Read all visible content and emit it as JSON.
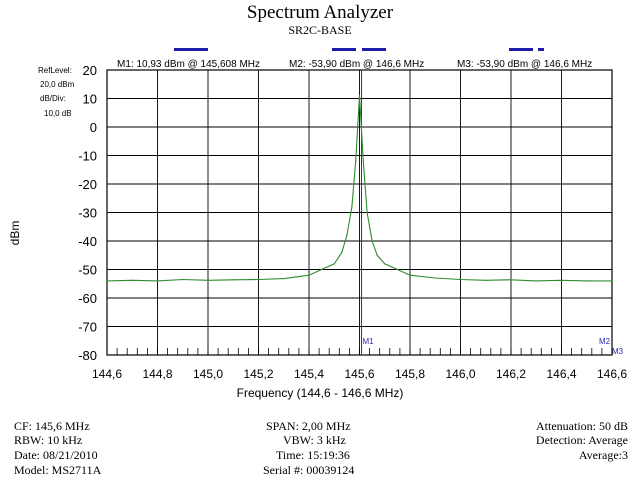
{
  "header": {
    "title": "Spectrum Analyzer",
    "subtitle": "SR2C-BASE"
  },
  "markers": {
    "m1": "M1: 10,93 dBm @ 145,608 MHz",
    "m2": "M2: -53,90 dBm @ 146,6 MHz",
    "m3": "M3: -53,90 dBm @ 146,6 MHz",
    "m1_tag": "M1",
    "m2_tag": "M2",
    "m3_tag": "M3"
  },
  "settings": {
    "ref_level_label": "RefLevel:",
    "ref_level_value": "20,0 dBm",
    "db_div_label": "dB/Div:",
    "db_div_value": "10,0 dB"
  },
  "footer": {
    "cf": "CF: 145,6 MHz",
    "rbw": "RBW: 10 kHz",
    "date": "Date: 08/21/2010",
    "model": "Model: MS2711A",
    "span": "SPAN: 2,00 MHz",
    "vbw": "VBW: 3 kHz",
    "time": "Time: 15:19:36",
    "serial": "Serial #: 00039124",
    "attenuation": "Attenuation: 50 dB",
    "detection": "Detection: Average",
    "average": "Average:3"
  },
  "chart_data": {
    "type": "line",
    "xlabel": "Frequency (144,6 - 146,6 MHz)",
    "ylabel": "dBm",
    "xlim": [
      144.6,
      146.6
    ],
    "ylim": [
      -80,
      20
    ],
    "grid": true,
    "x_ticks": [
      "144,6",
      "144,8",
      "145,0",
      "145,2",
      "145,4",
      "145,6",
      "145,8",
      "146,0",
      "146,2",
      "146,4",
      "146,6"
    ],
    "y_ticks": [
      "20",
      "10",
      "0",
      "-10",
      "-20",
      "-30",
      "-40",
      "-50",
      "-60",
      "-70",
      "-80"
    ],
    "series": [
      {
        "color": "#2e8b2e",
        "x": [
          144.6,
          144.7,
          144.8,
          144.9,
          145.0,
          145.1,
          145.2,
          145.3,
          145.4,
          145.45,
          145.5,
          145.53,
          145.55,
          145.57,
          145.585,
          145.6,
          145.615,
          145.63,
          145.65,
          145.67,
          145.7,
          145.75,
          145.8,
          145.9,
          146.0,
          146.1,
          146.2,
          146.3,
          146.4,
          146.5,
          146.6
        ],
        "y": [
          -54,
          -53.8,
          -54,
          -53.5,
          -53.8,
          -53.6,
          -53.5,
          -53.2,
          -52,
          -50,
          -48,
          -44,
          -38,
          -28,
          -12,
          11,
          -12,
          -30,
          -40,
          -45,
          -48,
          -50,
          -52,
          -53,
          -53.5,
          -53.8,
          -53.6,
          -54,
          -53.8,
          -54,
          -54
        ]
      }
    ],
    "markers": [
      {
        "name": "M1",
        "x": 145.608,
        "y": 10.93
      },
      {
        "name": "M2",
        "x": 146.6,
        "y": -53.9
      },
      {
        "name": "M3",
        "x": 146.6,
        "y": -53.9
      }
    ]
  }
}
